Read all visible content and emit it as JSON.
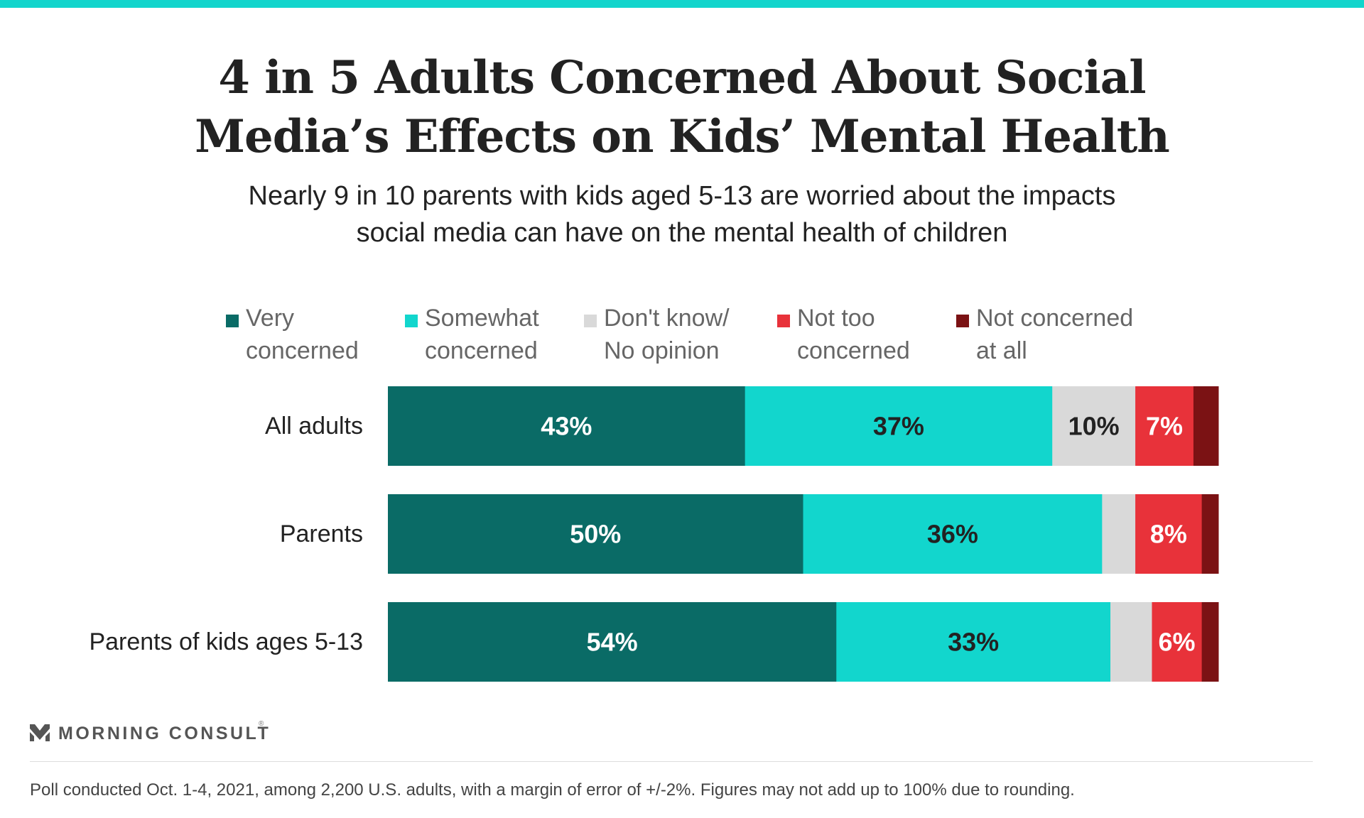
{
  "header": {
    "title_line1": "4 in 5 Adults Concerned About Social",
    "title_line2": "Media’s Effects on Kids’ Mental Health",
    "subtitle_line1": "Nearly 9 in 10 parents with kids aged 5-13 are worried about the impacts",
    "subtitle_line2": "social media can have on the mental health of children"
  },
  "legend": [
    {
      "line1": "Very",
      "line2": "concerned",
      "color": "#0a6b66"
    },
    {
      "line1": "Somewhat",
      "line2": "concerned",
      "color": "#12d6cd"
    },
    {
      "line1": "Don't know/",
      "line2": "No opinion",
      "color": "#d9d9d9"
    },
    {
      "line1": "Not too",
      "line2": "concerned",
      "color": "#e8323a"
    },
    {
      "line1": "Not concerned",
      "line2": "at all",
      "color": "#7b1214"
    }
  ],
  "chart_data": {
    "type": "bar",
    "orientation": "horizontal",
    "stacked": true,
    "categories": [
      "All adults",
      "Parents",
      "Parents of kids ages 5-13"
    ],
    "series": [
      {
        "name": "Very concerned",
        "values": [
          43,
          50,
          54
        ],
        "labels": [
          "43%",
          "50%",
          "54%"
        ],
        "color": "#0a6b66",
        "label_color": "#ffffff"
      },
      {
        "name": "Somewhat concerned",
        "values": [
          37,
          36,
          33
        ],
        "labels": [
          "37%",
          "36%",
          "33%"
        ],
        "color": "#12d6cd",
        "label_color": "#222222"
      },
      {
        "name": "Don't know/No opinion",
        "values": [
          10,
          4,
          5
        ],
        "labels": [
          "10%",
          "",
          ""
        ],
        "color": "#d9d9d9",
        "label_color": "#222222"
      },
      {
        "name": "Not too concerned",
        "values": [
          7,
          8,
          6
        ],
        "labels": [
          "7%",
          "8%",
          "6%"
        ],
        "color": "#e8323a",
        "label_color": "#ffffff"
      },
      {
        "name": "Not concerned at all",
        "values": [
          3,
          2,
          2
        ],
        "labels": [
          "",
          "",
          ""
        ],
        "color": "#7b1214",
        "label_color": "#ffffff"
      }
    ],
    "xlim": [
      0,
      100
    ],
    "legend_position": "top",
    "grid": false
  },
  "branding": {
    "logo_text": "MORNING CONSULT",
    "trademark": "®"
  },
  "footnote": "Poll conducted Oct. 1-4, 2021, among 2,200 U.S. adults, with a margin of error of +/-2%. Figures may not add up to 100% due to rounding."
}
